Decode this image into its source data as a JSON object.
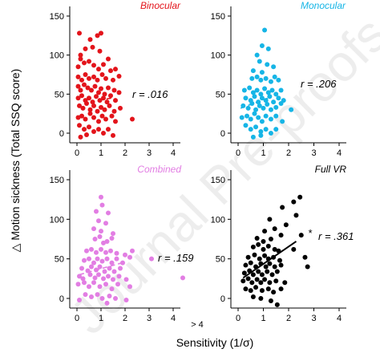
{
  "figure": {
    "y_label": "△ Motion sickness (Total SSQ score)",
    "x_label": "Sensitivity (1/σ)",
    "outlier_label": "> 4",
    "watermark": "Journal Pre-proofs"
  },
  "chart_data": [
    {
      "type": "scatter",
      "title": "Binocular",
      "color": "#e3141b",
      "r_label": "r = .016",
      "significance": "",
      "trend_style": "dashed",
      "trend": {
        "x": [
          0.9,
          1.45
        ],
        "y": [
          42,
          45
        ]
      },
      "xlim": [
        0,
        4
      ],
      "ylim": [
        0,
        150
      ],
      "xticks": [
        "0",
        "1",
        "2",
        "3",
        "4"
      ],
      "yticks": [
        "0",
        "50",
        "100",
        "150"
      ],
      "points": [
        [
          0.1,
          128
        ],
        [
          0.55,
          120
        ],
        [
          0.85,
          125
        ],
        [
          1.0,
          128
        ],
        [
          0.15,
          100
        ],
        [
          0.35,
          108
        ],
        [
          0.65,
          110
        ],
        [
          0.95,
          105
        ],
        [
          1.3,
          95
        ],
        [
          0.05,
          85
        ],
        [
          0.15,
          95
        ],
        [
          0.3,
          90
        ],
        [
          0.5,
          92
        ],
        [
          0.7,
          87
        ],
        [
          0.9,
          82
        ],
        [
          1.1,
          88
        ],
        [
          1.4,
          80
        ],
        [
          1.6,
          82
        ],
        [
          0.05,
          72
        ],
        [
          0.2,
          68
        ],
        [
          0.35,
          75
        ],
        [
          0.5,
          70
        ],
        [
          0.7,
          72
        ],
        [
          0.85,
          68
        ],
        [
          1.05,
          75
        ],
        [
          1.2,
          70
        ],
        [
          1.5,
          68
        ],
        [
          1.75,
          73
        ],
        [
          0.05,
          60
        ],
        [
          0.15,
          55
        ],
        [
          0.3,
          62
        ],
        [
          0.45,
          58
        ],
        [
          0.6,
          55
        ],
        [
          0.75,
          60
        ],
        [
          0.9,
          52
        ],
        [
          1.0,
          57
        ],
        [
          1.15,
          50
        ],
        [
          1.3,
          58
        ],
        [
          1.55,
          55
        ],
        [
          1.75,
          52
        ],
        [
          0.05,
          45
        ],
        [
          0.2,
          48
        ],
        [
          0.35,
          42
        ],
        [
          0.5,
          45
        ],
        [
          0.65,
          40
        ],
        [
          0.8,
          47
        ],
        [
          0.95,
          42
        ],
        [
          1.1,
          45
        ],
        [
          1.25,
          40
        ],
        [
          1.4,
          48
        ],
        [
          1.6,
          42
        ],
        [
          0.1,
          35
        ],
        [
          0.25,
          32
        ],
        [
          0.4,
          38
        ],
        [
          0.55,
          30
        ],
        [
          0.7,
          35
        ],
        [
          0.85,
          28
        ],
        [
          1.0,
          33
        ],
        [
          1.15,
          30
        ],
        [
          1.35,
          35
        ],
        [
          1.55,
          28
        ],
        [
          1.8,
          32
        ],
        [
          0.05,
          20
        ],
        [
          0.2,
          22
        ],
        [
          0.35,
          18
        ],
        [
          0.55,
          25
        ],
        [
          0.7,
          20
        ],
        [
          0.9,
          15
        ],
        [
          1.05,
          22
        ],
        [
          1.2,
          18
        ],
        [
          1.45,
          22
        ],
        [
          1.6,
          15
        ],
        [
          2.3,
          18
        ],
        [
          0.1,
          10
        ],
        [
          0.3,
          5
        ],
        [
          0.5,
          8
        ],
        [
          0.7,
          2
        ],
        [
          0.9,
          5
        ],
        [
          1.1,
          0
        ],
        [
          1.3,
          5
        ],
        [
          1.5,
          -3
        ],
        [
          0.15,
          -5
        ],
        [
          0.4,
          -2
        ]
      ]
    },
    {
      "type": "scatter",
      "title": "Monocular",
      "color": "#16b5e6",
      "r_label": "r = .206",
      "significance": "",
      "trend_style": "dashed",
      "trend": {
        "x": [
          0.1,
          1.2
        ],
        "y": [
          32,
          45
        ]
      },
      "xlim": [
        0,
        4
      ],
      "ylim": [
        0,
        150
      ],
      "xticks": [
        "0",
        "1",
        "2",
        "3",
        "4"
      ],
      "yticks": [
        "0",
        "50",
        "100",
        "150"
      ],
      "points": [
        [
          1.05,
          132
        ],
        [
          0.95,
          112
        ],
        [
          1.2,
          108
        ],
        [
          0.75,
          100
        ],
        [
          0.85,
          92
        ],
        [
          1.15,
          88
        ],
        [
          1.4,
          85
        ],
        [
          0.6,
          80
        ],
        [
          0.95,
          78
        ],
        [
          0.55,
          70
        ],
        [
          0.75,
          72
        ],
        [
          0.9,
          68
        ],
        [
          1.1,
          70
        ],
        [
          1.3,
          66
        ],
        [
          1.45,
          72
        ],
        [
          1.6,
          68
        ],
        [
          0.25,
          55
        ],
        [
          0.45,
          58
        ],
        [
          0.6,
          52
        ],
        [
          0.75,
          55
        ],
        [
          0.9,
          50
        ],
        [
          1.05,
          57
        ],
        [
          1.2,
          52
        ],
        [
          1.35,
          55
        ],
        [
          1.5,
          50
        ],
        [
          1.7,
          55
        ],
        [
          0.3,
          45
        ],
        [
          0.5,
          42
        ],
        [
          0.65,
          47
        ],
        [
          0.8,
          40
        ],
        [
          0.95,
          45
        ],
        [
          1.1,
          42
        ],
        [
          1.25,
          47
        ],
        [
          1.4,
          40
        ],
        [
          1.6,
          45
        ],
        [
          1.8,
          42
        ],
        [
          0.2,
          35
        ],
        [
          0.4,
          32
        ],
        [
          0.55,
          38
        ],
        [
          0.7,
          30
        ],
        [
          0.85,
          35
        ],
        [
          1.0,
          32
        ],
        [
          1.15,
          37
        ],
        [
          1.3,
          30
        ],
        [
          1.5,
          33
        ],
        [
          1.7,
          38
        ],
        [
          2.1,
          30
        ],
        [
          0.15,
          20
        ],
        [
          0.35,
          22
        ],
        [
          0.5,
          18
        ],
        [
          0.65,
          25
        ],
        [
          0.8,
          20
        ],
        [
          0.95,
          15
        ],
        [
          1.1,
          22
        ],
        [
          1.3,
          18
        ],
        [
          1.5,
          22
        ],
        [
          1.75,
          15
        ],
        [
          0.3,
          10
        ],
        [
          0.5,
          5
        ],
        [
          0.7,
          8
        ],
        [
          0.9,
          2
        ],
        [
          1.1,
          5
        ],
        [
          1.3,
          0
        ],
        [
          1.5,
          5
        ],
        [
          0.6,
          -5
        ],
        [
          0.9,
          -3
        ]
      ]
    },
    {
      "type": "scatter",
      "title": "Combined",
      "color": "#e27ee3",
      "r_label": "r = .159",
      "significance": "",
      "trend_style": "dashed",
      "trend": {
        "x": [
          0.1,
          2.0
        ],
        "y": [
          30,
          46
        ]
      },
      "xlim": [
        0,
        4
      ],
      "ylim": [
        0,
        150
      ],
      "xticks": [
        "0",
        "1",
        "2",
        "3",
        "4"
      ],
      "yticks": [
        "0",
        "50",
        "100",
        "150"
      ],
      "outlier": {
        "x": 4.4,
        "y": 26
      },
      "points": [
        [
          1.0,
          128
        ],
        [
          1.05,
          118
        ],
        [
          0.8,
          110
        ],
        [
          1.3,
          108
        ],
        [
          0.9,
          98
        ],
        [
          1.2,
          95
        ],
        [
          0.7,
          88
        ],
        [
          1.0,
          85
        ],
        [
          1.5,
          82
        ],
        [
          0.75,
          75
        ],
        [
          0.95,
          78
        ],
        [
          1.25,
          72
        ],
        [
          1.45,
          76
        ],
        [
          1.1,
          70
        ],
        [
          0.4,
          60
        ],
        [
          0.6,
          62
        ],
        [
          0.8,
          58
        ],
        [
          1.0,
          62
        ],
        [
          1.2,
          58
        ],
        [
          1.4,
          60
        ],
        [
          1.65,
          57
        ],
        [
          2.0,
          55
        ],
        [
          2.3,
          60
        ],
        [
          0.3,
          48
        ],
        [
          0.5,
          50
        ],
        [
          0.7,
          45
        ],
        [
          0.85,
          50
        ],
        [
          1.05,
          47
        ],
        [
          1.25,
          50
        ],
        [
          1.45,
          45
        ],
        [
          1.65,
          50
        ],
        [
          1.9,
          45
        ],
        [
          2.2,
          52
        ],
        [
          3.1,
          50
        ],
        [
          0.2,
          38
        ],
        [
          0.45,
          35
        ],
        [
          0.6,
          40
        ],
        [
          0.8,
          36
        ],
        [
          0.95,
          40
        ],
        [
          1.15,
          34
        ],
        [
          1.35,
          38
        ],
        [
          1.55,
          34
        ],
        [
          1.8,
          38
        ],
        [
          0.1,
          28
        ],
        [
          0.25,
          25
        ],
        [
          0.55,
          30
        ],
        [
          0.75,
          26
        ],
        [
          0.9,
          30
        ],
        [
          1.1,
          25
        ],
        [
          1.3,
          28
        ],
        [
          1.5,
          24
        ],
        [
          1.75,
          28
        ],
        [
          2.05,
          24
        ],
        [
          0.05,
          18
        ],
        [
          0.3,
          20
        ],
        [
          0.5,
          15
        ],
        [
          0.7,
          20
        ],
        [
          0.95,
          15
        ],
        [
          1.2,
          18
        ],
        [
          1.45,
          12
        ],
        [
          1.7,
          18
        ],
        [
          2.2,
          15
        ],
        [
          0.35,
          5
        ],
        [
          0.6,
          2
        ],
        [
          0.85,
          5
        ],
        [
          1.05,
          0
        ],
        [
          1.35,
          3
        ],
        [
          1.6,
          0
        ],
        [
          2.05,
          -2
        ],
        [
          0.1,
          -2
        ],
        [
          1.25,
          -6
        ]
      ]
    },
    {
      "type": "scatter",
      "title": "Full VR",
      "color": "#000000",
      "r_label": "r = .361",
      "significance": "*",
      "trend_style": "solid",
      "trend": {
        "x": [
          0.2,
          2.3
        ],
        "y": [
          26,
          72
        ]
      },
      "xlim": [
        0,
        4
      ],
      "ylim": [
        0,
        150
      ],
      "xticks": [
        "0",
        "1",
        "2",
        "3",
        "4"
      ],
      "yticks": [
        "0",
        "50",
        "100",
        "150"
      ],
      "points": [
        [
          2.45,
          128
        ],
        [
          2.2,
          122
        ],
        [
          1.75,
          115
        ],
        [
          2.3,
          105
        ],
        [
          1.25,
          100
        ],
        [
          1.9,
          93
        ],
        [
          1.05,
          85
        ],
        [
          1.45,
          88
        ],
        [
          1.7,
          80
        ],
        [
          0.75,
          76
        ],
        [
          1.0,
          72
        ],
        [
          1.3,
          75
        ],
        [
          2.5,
          80
        ],
        [
          0.6,
          65
        ],
        [
          0.8,
          68
        ],
        [
          1.0,
          62
        ],
        [
          1.2,
          66
        ],
        [
          1.45,
          62
        ],
        [
          1.6,
          60
        ],
        [
          2.2,
          62
        ],
        [
          0.4,
          52
        ],
        [
          0.65,
          55
        ],
        [
          0.85,
          50
        ],
        [
          1.05,
          54
        ],
        [
          1.2,
          50
        ],
        [
          1.4,
          52
        ],
        [
          1.65,
          48
        ],
        [
          2.65,
          52
        ],
        [
          0.3,
          42
        ],
        [
          0.5,
          45
        ],
        [
          0.7,
          40
        ],
        [
          0.9,
          44
        ],
        [
          1.1,
          40
        ],
        [
          1.25,
          44
        ],
        [
          1.45,
          40
        ],
        [
          1.7,
          42
        ],
        [
          0.25,
          32
        ],
        [
          0.45,
          35
        ],
        [
          0.6,
          30
        ],
        [
          0.8,
          34
        ],
        [
          0.95,
          30
        ],
        [
          1.15,
          34
        ],
        [
          1.35,
          30
        ],
        [
          1.55,
          34
        ],
        [
          2.75,
          40
        ],
        [
          0.2,
          22
        ],
        [
          0.4,
          25
        ],
        [
          0.55,
          20
        ],
        [
          0.75,
          24
        ],
        [
          0.9,
          20
        ],
        [
          1.05,
          24
        ],
        [
          1.25,
          20
        ],
        [
          1.5,
          22
        ],
        [
          1.85,
          20
        ],
        [
          0.3,
          12
        ],
        [
          0.5,
          10
        ],
        [
          0.7,
          14
        ],
        [
          0.95,
          10
        ],
        [
          1.2,
          12
        ],
        [
          1.4,
          8
        ],
        [
          1.7,
          12
        ],
        [
          0.6,
          2
        ],
        [
          0.9,
          0
        ],
        [
          1.3,
          -3
        ],
        [
          1.55,
          -8
        ]
      ]
    }
  ]
}
